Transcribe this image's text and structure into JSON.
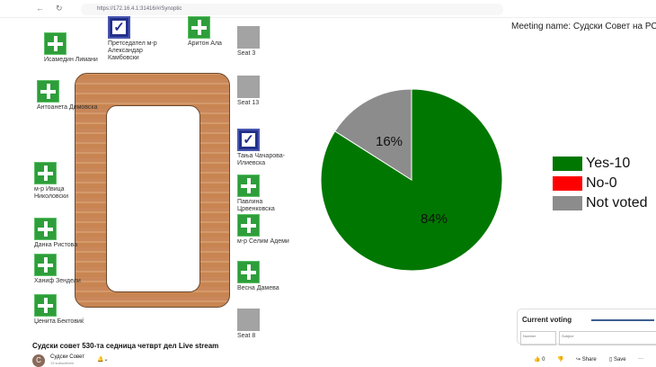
{
  "browser": {
    "url": "https://172.16.4.1:31416/#/Synoptic",
    "back": "←",
    "reload": "↻"
  },
  "seats": {
    "left": [
      {
        "name": "Исамедин Лимани",
        "status": "yes"
      },
      {
        "name": "Антоанета Димовска",
        "status": "yes"
      },
      {
        "name": "м-р Ивица Николовски",
        "status": "yes"
      },
      {
        "name": "Данка Ристова",
        "status": "yes"
      },
      {
        "name": "Ханиф Зендели",
        "status": "yes"
      },
      {
        "name": "Џенита Бектовиќ",
        "status": "yes"
      }
    ],
    "top": [
      {
        "name": "Претседател м-р Александар Камбовски",
        "status": "check"
      },
      {
        "name": "Аритон Ала",
        "status": "yes"
      }
    ],
    "right": [
      {
        "name": "Seat 3",
        "status": "empty"
      },
      {
        "name": "Seat 13",
        "status": "empty"
      },
      {
        "name": "Тања Чачарова-Илиевска",
        "status": "check"
      },
      {
        "name": "Павлина Црвенковска",
        "status": "yes"
      },
      {
        "name": "м-р Селим Адеми",
        "status": "yes"
      },
      {
        "name": "Весна Дамева",
        "status": "yes"
      },
      {
        "name": "Seat 8",
        "status": "empty"
      }
    ]
  },
  "meeting": {
    "label": "Meeting name: Судски Совет на РС"
  },
  "chart_data": {
    "type": "pie",
    "slices": [
      {
        "label": "Yes-10",
        "value": 84,
        "color": "#007700"
      },
      {
        "label": "No-0",
        "value": 0,
        "color": "#ff0000"
      },
      {
        "label": "Not voted",
        "value": 16,
        "color": "#8c8c8c"
      }
    ],
    "data_labels": [
      "84%",
      "16%"
    ]
  },
  "legend": [
    "Yes-10",
    "No-0",
    "Not voted"
  ],
  "current_voting": {
    "title": "Current voting",
    "col1": "Number",
    "col2": "Subject"
  },
  "video": {
    "title": "Судски совет 530-та седница четврт дел Live stream",
    "channel": "Судски Совет",
    "subscribers": "13 subscribers",
    "avatar": "C",
    "likes": "0",
    "share": "Share",
    "save": "Save",
    "more": "···"
  }
}
